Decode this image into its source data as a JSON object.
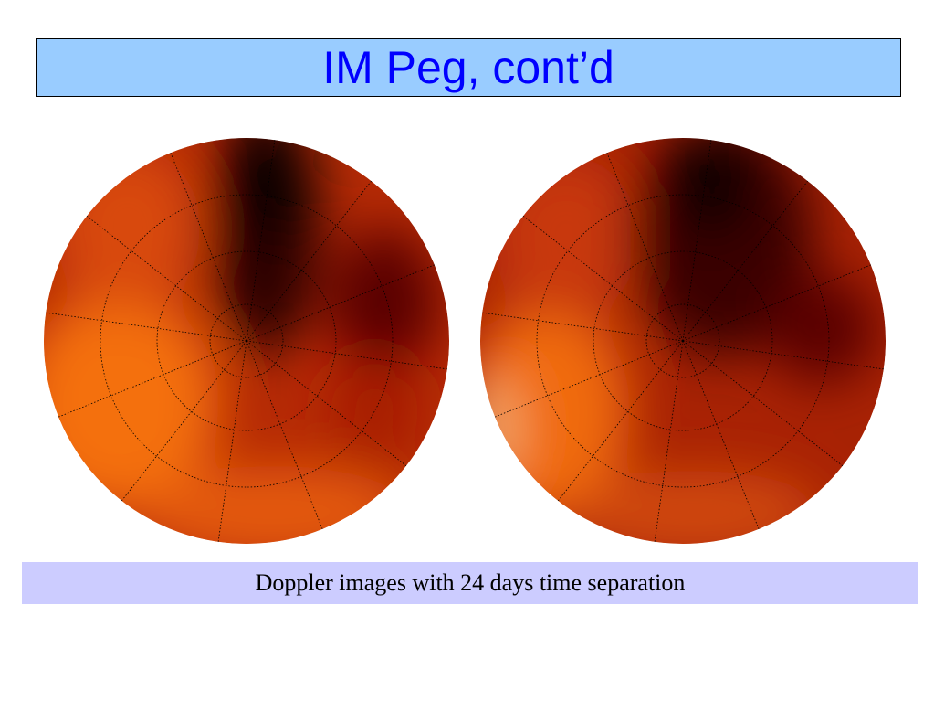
{
  "header": {
    "title": "IM Peg, cont’d"
  },
  "caption": "Doppler images with 24 days time separation"
}
